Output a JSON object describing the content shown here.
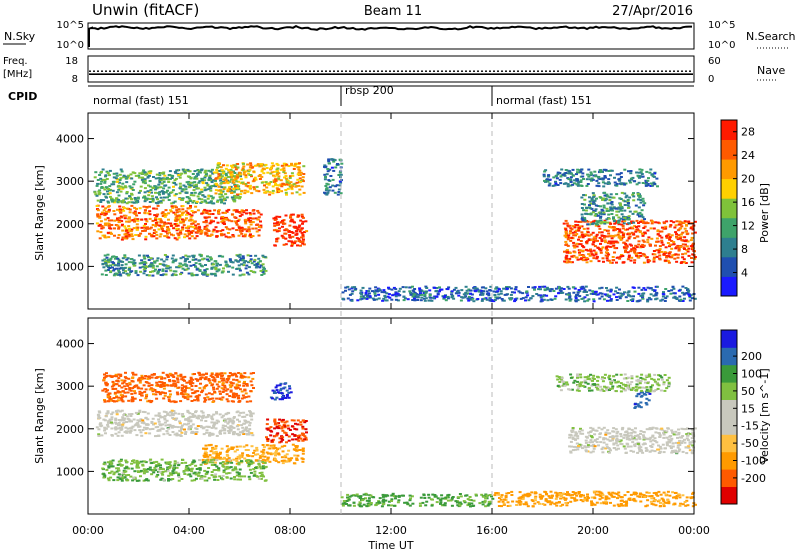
{
  "header": {
    "radar": "Unwin (fitACF)",
    "beam": "Beam 11",
    "date": "27/Apr/2016"
  },
  "panels": {
    "nsky": {
      "left_label": "N.Sky",
      "right_label": "N.Search",
      "left_ticks": [
        "10^5",
        "10^0"
      ],
      "right_ticks": [
        "10^5",
        "10^0"
      ],
      "level": 0.82
    },
    "freq": {
      "left_label_1": "Freq.",
      "left_label_2": "[MHz]",
      "right_label": "Nave",
      "left_ticks": [
        "18",
        "8"
      ],
      "right_ticks": [
        "60",
        "0"
      ],
      "freq_value": 11,
      "nave_value": 25
    },
    "cpid": {
      "label": "CPID",
      "segments": [
        {
          "name": "normal (fast) 151",
          "start_h": 0
        },
        {
          "name": "rbsp 200",
          "start_h": 10
        },
        {
          "name": "normal (fast) 151",
          "start_h": 16
        }
      ]
    }
  },
  "axes": {
    "xlabel": "Time UT",
    "xticks": [
      "00:00",
      "04:00",
      "08:00",
      "12:00",
      "16:00",
      "20:00",
      "00:00"
    ],
    "xmin_h": 0,
    "xmax_h": 24,
    "ylabel": "Slant Range [km]",
    "yticks": [
      1000,
      2000,
      3000,
      4000
    ],
    "ylim": [
      0,
      4600
    ]
  },
  "colors": {
    "power": [
      "#1a1aff",
      "#1f4fb0",
      "#2e7f8f",
      "#3ea36a",
      "#7fc23a",
      "#ffd000",
      "#ff9a00",
      "#ff5a00",
      "#ff1a00"
    ],
    "velocity": [
      "#e00000",
      "#ff5a00",
      "#ff9a00",
      "#ffc040",
      "#c8c8bd",
      "#c8c8bd",
      "#80c040",
      "#3a9a3a",
      "#2a6ab0",
      "#1a1ae0"
    ],
    "ground": "#c8c8bd"
  },
  "chart_data": [
    {
      "type": "heatmap",
      "title": "",
      "xlabel": "",
      "ylabel": "Slant Range [km]",
      "colorbar_label": "Power [dB]",
      "colorbar_ticks": [
        4,
        8,
        12,
        16,
        20,
        24,
        28
      ],
      "clim": [
        0,
        30
      ],
      "regions": [
        {
          "t0": 0.3,
          "t1": 4.3,
          "r0": 1650,
          "r1": 2450,
          "value": 24
        },
        {
          "t0": 4.3,
          "t1": 6.8,
          "r0": 1700,
          "r1": 2350,
          "value": 26
        },
        {
          "t0": 7.3,
          "t1": 8.6,
          "r0": 1500,
          "r1": 2250,
          "value": 28
        },
        {
          "t0": 0.2,
          "t1": 6.0,
          "r0": 2500,
          "r1": 3300,
          "value": 12
        },
        {
          "t0": 5.0,
          "t1": 8.5,
          "r0": 2700,
          "r1": 3450,
          "value": 20
        },
        {
          "t0": 0.5,
          "t1": 7.0,
          "r0": 800,
          "r1": 1300,
          "value": 10
        },
        {
          "t0": 9.3,
          "t1": 10.0,
          "r0": 2700,
          "r1": 3550,
          "value": 8
        },
        {
          "t0": 10.0,
          "t1": 24.0,
          "r0": 200,
          "r1": 550,
          "value": 6
        },
        {
          "t0": 18.8,
          "t1": 24.0,
          "r0": 1100,
          "r1": 2100,
          "value": 26
        },
        {
          "t0": 19.5,
          "t1": 22.0,
          "r0": 2000,
          "r1": 2750,
          "value": 10
        },
        {
          "t0": 18.0,
          "t1": 22.5,
          "r0": 2900,
          "r1": 3300,
          "value": 8
        }
      ]
    },
    {
      "type": "heatmap",
      "title": "",
      "xlabel": "Time UT",
      "ylabel": "Slant Range [km]",
      "colorbar_label": "Velocity [m s^-1]",
      "colorbar_ticks": [
        -200,
        -100,
        -50,
        -15,
        15,
        50,
        100,
        200
      ],
      "clim": [
        -250,
        250
      ],
      "regions": [
        {
          "t0": 0.3,
          "t1": 6.5,
          "r0": 1850,
          "r1": 2450,
          "value": 0,
          "ground": true
        },
        {
          "t0": 7.0,
          "t1": 8.6,
          "r0": 1700,
          "r1": 2250,
          "value": -200
        },
        {
          "t0": 7.2,
          "t1": 8.0,
          "r0": 2700,
          "r1": 3100,
          "value": 200
        },
        {
          "t0": 4.5,
          "t1": 8.5,
          "r0": 1200,
          "r1": 1650,
          "value": -60
        },
        {
          "t0": 0.5,
          "t1": 6.5,
          "r0": 2650,
          "r1": 3350,
          "value": -120
        },
        {
          "t0": 0.5,
          "t1": 7.0,
          "r0": 800,
          "r1": 1300,
          "value": 40
        },
        {
          "t0": 10.0,
          "t1": 16.0,
          "r0": 200,
          "r1": 500,
          "value": 60
        },
        {
          "t0": 16.0,
          "t1": 24.0,
          "r0": 200,
          "r1": 550,
          "value": -70
        },
        {
          "t0": 19.0,
          "t1": 24.0,
          "r0": 1450,
          "r1": 2050,
          "value": 0,
          "ground": true
        },
        {
          "t0": 21.6,
          "t1": 22.2,
          "r0": 2500,
          "r1": 2900,
          "value": 180
        },
        {
          "t0": 18.5,
          "t1": 23.0,
          "r0": 2900,
          "r1": 3300,
          "value": 30
        }
      ]
    }
  ]
}
